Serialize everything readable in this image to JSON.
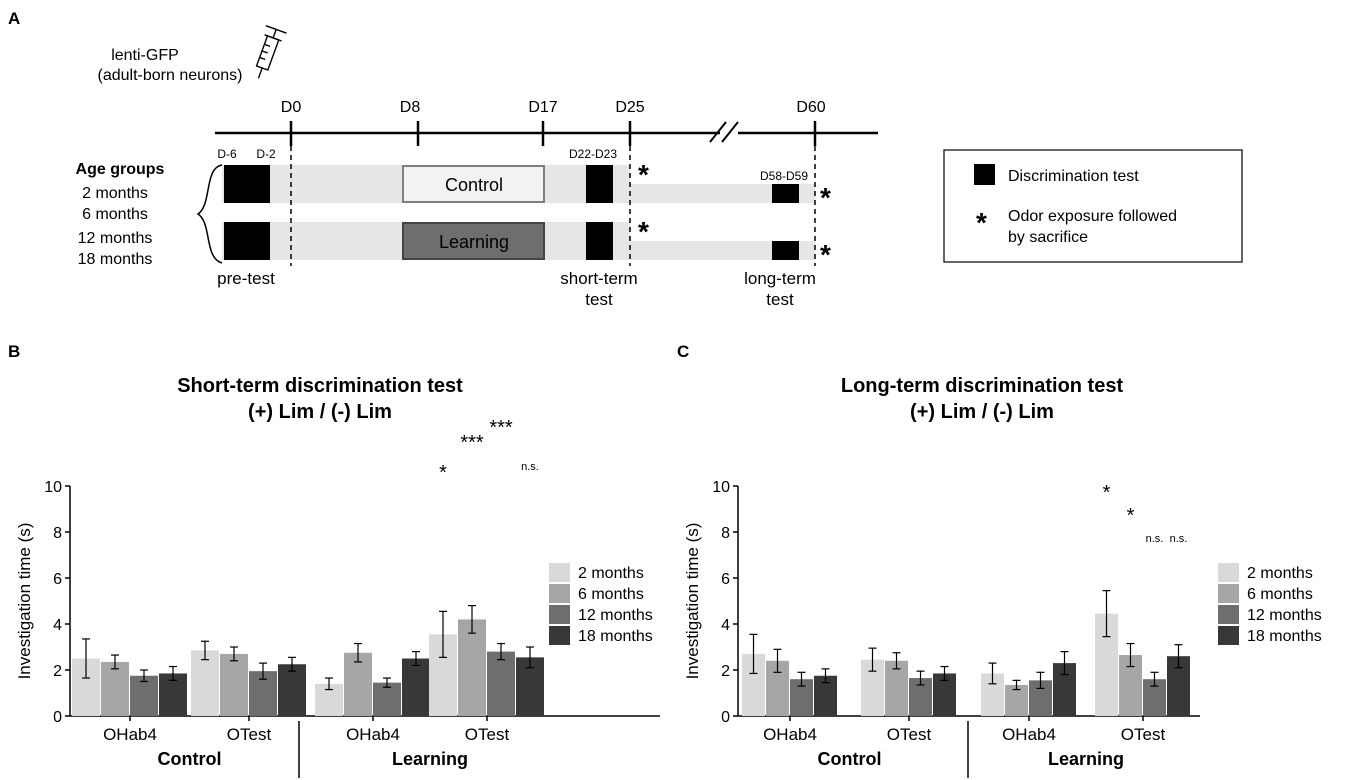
{
  "panel_a": {
    "letter": "A",
    "injection": {
      "line1": "lenti-GFP",
      "line2": "(adult-born neurons)"
    },
    "days": [
      "D0",
      "D8",
      "D17",
      "D25",
      "D60"
    ],
    "small_days": {
      "d_minus6": "D-6",
      "d_minus2": "D-2",
      "d22_23": "D22-D23",
      "d58_59": "D58-D59"
    },
    "age_groups": {
      "title": "Age groups",
      "items": [
        "2 months",
        "6 months",
        "12 months",
        "18 months"
      ]
    },
    "groups": {
      "control": "Control",
      "learning": "Learning"
    },
    "phase_labels": {
      "pretest": "pre-test",
      "shortterm_1": "short-term",
      "shortterm_2": "test",
      "longterm_1": "long-term",
      "longterm_2": "test"
    },
    "legend": {
      "discrimination": "Discrimination test",
      "star": "*",
      "odor_1": "Odor exposure followed",
      "odor_2": "by sacrifice"
    }
  },
  "chart_data": [
    {
      "panel": "B",
      "type": "bar",
      "title": "Short-term discrimination test",
      "subtitle": "(+) Lim / (-) Lim",
      "xlabel": "",
      "ylabel": "Investigation time (s)",
      "ylim": [
        0,
        10
      ],
      "yticks": [
        0,
        2,
        4,
        6,
        8,
        10
      ],
      "categories": [
        "OHab4",
        "OTest",
        "OHab4",
        "OTest"
      ],
      "groups": [
        "Control",
        "Learning"
      ],
      "series": [
        {
          "name": "2 months",
          "color": "#d9d9d9",
          "values": [
            2.5,
            2.85,
            1.4,
            3.55
          ],
          "errors": [
            0.85,
            0.4,
            0.25,
            1.0
          ]
        },
        {
          "name": "6 months",
          "color": "#a6a6a6",
          "values": [
            2.35,
            2.7,
            2.75,
            4.2
          ],
          "errors": [
            0.3,
            0.3,
            0.4,
            0.6
          ]
        },
        {
          "name": "12 months",
          "color": "#6e6e6e",
          "values": [
            1.75,
            1.95,
            1.45,
            2.8
          ],
          "errors": [
            0.25,
            0.35,
            0.2,
            0.35
          ]
        },
        {
          "name": "18 months",
          "color": "#383838",
          "values": [
            1.85,
            2.25,
            2.5,
            2.55
          ],
          "errors": [
            0.3,
            0.3,
            0.3,
            0.45
          ]
        }
      ],
      "annotations": [
        {
          "category": 3,
          "series": 0,
          "label": "*"
        },
        {
          "category": 3,
          "series": 1,
          "label": "***"
        },
        {
          "category": 3,
          "series": 2,
          "label": "***"
        },
        {
          "category": 3,
          "series": 3,
          "label": "n.s."
        }
      ],
      "legend": "right"
    },
    {
      "panel": "C",
      "type": "bar",
      "title": "Long-term discrimination test",
      "subtitle": "(+) Lim / (-) Lim",
      "xlabel": "",
      "ylabel": "Investigation time (s)",
      "ylim": [
        0,
        10
      ],
      "yticks": [
        0,
        2,
        4,
        6,
        8,
        10
      ],
      "categories": [
        "OHab4",
        "OTest",
        "OHab4",
        "OTest"
      ],
      "groups": [
        "Control",
        "Learning"
      ],
      "series": [
        {
          "name": "2 months",
          "color": "#d9d9d9",
          "values": [
            2.7,
            2.45,
            1.85,
            4.45
          ],
          "errors": [
            0.85,
            0.5,
            0.45,
            1.0
          ]
        },
        {
          "name": "6 months",
          "color": "#a6a6a6",
          "values": [
            2.4,
            2.4,
            1.35,
            2.65
          ],
          "errors": [
            0.5,
            0.35,
            0.2,
            0.5
          ]
        },
        {
          "name": "12 months",
          "color": "#6e6e6e",
          "values": [
            1.6,
            1.65,
            1.55,
            1.6
          ],
          "errors": [
            0.3,
            0.3,
            0.35,
            0.3
          ]
        },
        {
          "name": "18 months",
          "color": "#383838",
          "values": [
            1.75,
            1.85,
            2.3,
            2.6
          ],
          "errors": [
            0.3,
            0.3,
            0.5,
            0.5
          ]
        }
      ],
      "annotations": [
        {
          "category": 3,
          "series": 0,
          "label": "*"
        },
        {
          "category": 3,
          "series": 1,
          "label": "*"
        },
        {
          "category": 3,
          "series": 2,
          "label": "n.s."
        },
        {
          "category": 3,
          "series": 3,
          "label": "n.s."
        }
      ],
      "legend": "right"
    }
  ]
}
